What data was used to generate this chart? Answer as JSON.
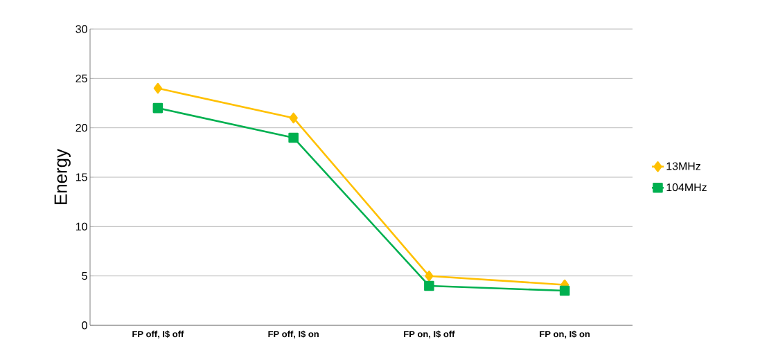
{
  "chart_data": {
    "type": "line",
    "ylabel": "Energy",
    "categories": [
      "FP off, I$ off",
      "FP off, I$ on",
      "FP on, I$ off",
      "FP on, I$ on"
    ],
    "series": [
      {
        "name": "13MHz",
        "color": "#ffc000",
        "marker": "diamond",
        "values": [
          24,
          21,
          5,
          4.1
        ]
      },
      {
        "name": "104MHz",
        "color": "#00b050",
        "marker": "square",
        "values": [
          22,
          19,
          4.0,
          3.5
        ]
      }
    ],
    "ylim": [
      0,
      30
    ],
    "yticks": [
      0,
      5,
      10,
      15,
      20,
      25,
      30
    ],
    "grid": "y",
    "legend": "right"
  }
}
